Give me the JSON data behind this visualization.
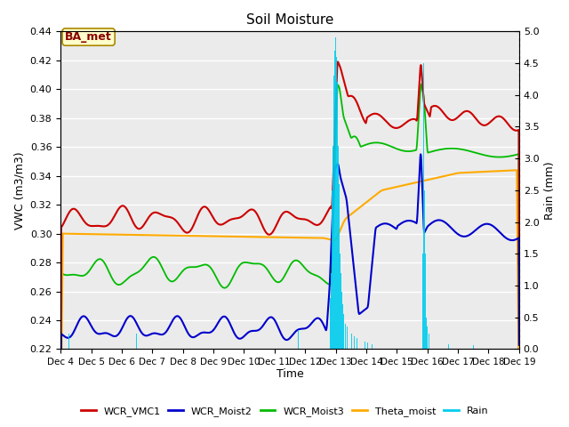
{
  "title": "Soil Moisture",
  "xlabel": "Time",
  "ylabel_left": "VWC (m3/m3)",
  "ylabel_right": "Rain (mm)",
  "ylim_left": [
    0.22,
    0.44
  ],
  "ylim_right": [
    0.0,
    5.0
  ],
  "yticks_left": [
    0.22,
    0.24,
    0.26,
    0.28,
    0.3,
    0.32,
    0.34,
    0.36,
    0.38,
    0.4,
    0.42,
    0.44
  ],
  "yticks_right": [
    0.0,
    0.5,
    1.0,
    1.5,
    2.0,
    2.5,
    3.0,
    3.5,
    4.0,
    4.5,
    5.0
  ],
  "xtick_labels": [
    "Dec 4",
    "Dec 5",
    "Dec 6",
    "Dec 7",
    "Dec 8",
    "Dec 9",
    "Dec 10",
    "Dec 11",
    "Dec 12",
    "Dec 13",
    "Dec 14",
    "Dec 15",
    "Dec 16",
    "Dec 17",
    "Dec 18",
    "Dec 19"
  ],
  "colors": {
    "WCR_VMC1": "#cc0000",
    "WCR_Moist2": "#0000cc",
    "WCR_Moist3": "#00bb00",
    "Theta_moist": "#ffaa00",
    "Rain": "#00ccee"
  },
  "background_color": "#ebebeb",
  "grid_color": "#ffffff",
  "annotation_text": "BA_met",
  "annotation_box_facecolor": "#ffffcc",
  "annotation_box_edgecolor": "#aa8800",
  "annotation_text_color": "#880000"
}
